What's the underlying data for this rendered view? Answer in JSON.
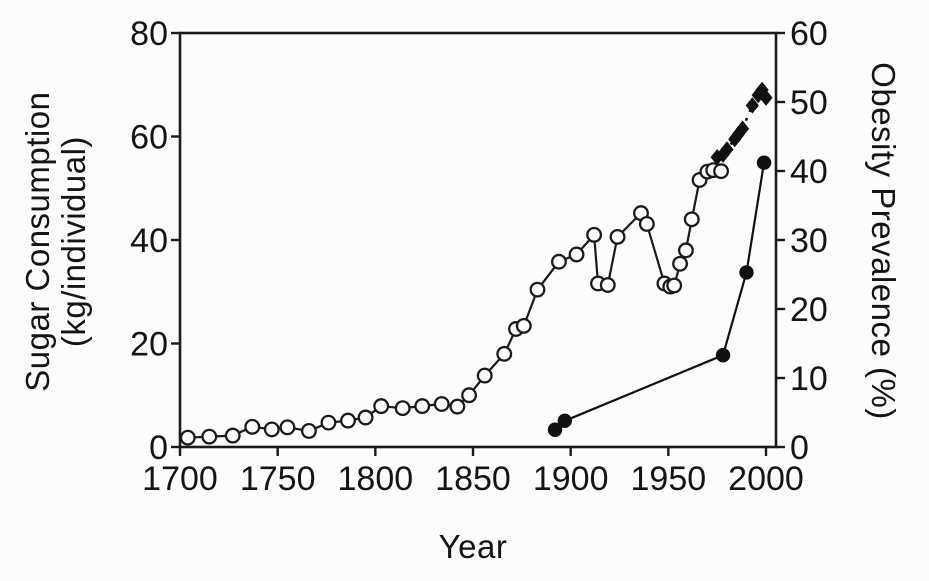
{
  "figure": {
    "background": "#fcfcfc",
    "ink_color": "#1a1a1a"
  },
  "chart_data": {
    "type": "line",
    "title": "",
    "xlabel": "Year",
    "ylabel_left": "Sugar Consumption (kg/individual)",
    "ylabel_left_lines": [
      "Sugar Consumption",
      "(kg/individual)"
    ],
    "ylabel_right": "Obesity Prevalence (%)",
    "xlim": [
      1700,
      2000
    ],
    "x_ticks": [
      1700,
      1750,
      1800,
      1850,
      1900,
      1950,
      2000
    ],
    "ylim_left": [
      0,
      80
    ],
    "y_left_ticks": [
      0,
      20,
      40,
      60,
      80
    ],
    "ylim_right": [
      0,
      60
    ],
    "y_right_ticks": [
      0,
      10,
      20,
      30,
      40,
      50,
      60
    ],
    "grid": false,
    "legend": "none",
    "series": [
      {
        "name": "sugar-consumption-open-circles",
        "axis": "left",
        "marker": "open-circle",
        "line_style": "solid",
        "color": "#1a1a1a",
        "points": [
          [
            1704,
            1.8
          ],
          [
            1715,
            2.0
          ],
          [
            1727,
            2.2
          ],
          [
            1737,
            3.9
          ],
          [
            1747,
            3.4
          ],
          [
            1755,
            3.8
          ],
          [
            1766,
            3.1
          ],
          [
            1776,
            4.7
          ],
          [
            1786,
            5.1
          ],
          [
            1795,
            5.7
          ],
          [
            1803,
            7.9
          ],
          [
            1814,
            7.5
          ],
          [
            1824,
            7.9
          ],
          [
            1834,
            8.3
          ],
          [
            1842,
            7.8
          ],
          [
            1848,
            10.0
          ],
          [
            1856,
            13.8
          ],
          [
            1866,
            18.0
          ],
          [
            1872,
            22.8
          ],
          [
            1876,
            23.4
          ],
          [
            1883,
            30.4
          ],
          [
            1894,
            35.8
          ],
          [
            1903,
            37.2
          ],
          [
            1912,
            41.0
          ],
          [
            1914,
            31.6
          ],
          [
            1919,
            31.3
          ],
          [
            1924,
            40.6
          ],
          [
            1936,
            45.2
          ],
          [
            1939,
            43.1
          ],
          [
            1948,
            31.6
          ],
          [
            1951,
            31.0
          ],
          [
            1953,
            31.2
          ],
          [
            1956,
            35.4
          ],
          [
            1959,
            38.0
          ],
          [
            1962,
            44.0
          ],
          [
            1966,
            51.6
          ],
          [
            1970,
            53.2
          ],
          [
            1973,
            53.5
          ],
          [
            1977,
            53.3
          ]
        ]
      },
      {
        "name": "sweetener-consumption-filled-diamonds",
        "axis": "left",
        "marker": "filled-diamond",
        "line_style": "dotted",
        "color": "#111111",
        "points": [
          [
            1975,
            56.0
          ],
          [
            1978,
            56.5
          ],
          [
            1980,
            57.5
          ],
          [
            1984,
            59.5
          ],
          [
            1986,
            60.5
          ],
          [
            1988,
            61.5
          ],
          [
            1993,
            66.0
          ],
          [
            1996,
            68.0
          ],
          [
            1998,
            69.0
          ],
          [
            2000,
            67.5
          ]
        ]
      },
      {
        "name": "obesity-prevalence-filled-circles",
        "axis": "right",
        "marker": "filled-circle",
        "line_style": "solid",
        "color": "#111111",
        "points": [
          [
            1892,
            2.5
          ],
          [
            1897,
            3.8
          ],
          [
            1978,
            13.3
          ],
          [
            1990,
            25.3
          ],
          [
            1999,
            41.2
          ]
        ]
      }
    ]
  }
}
